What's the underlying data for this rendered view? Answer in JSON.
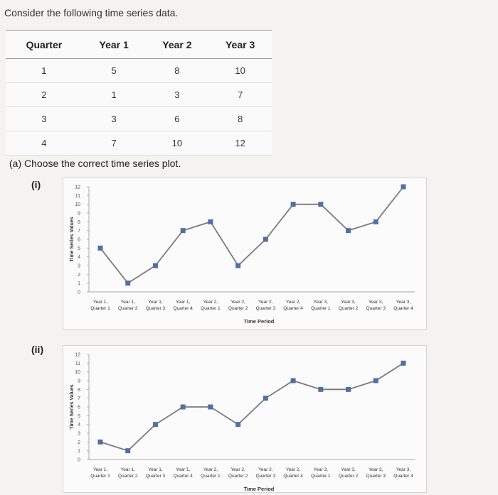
{
  "question": "Consider the following time series data.",
  "table": {
    "headers": [
      "Quarter",
      "Year 1",
      "Year 2",
      "Year 3"
    ],
    "rows": [
      [
        "1",
        "5",
        "8",
        "10"
      ],
      [
        "2",
        "1",
        "3",
        "7"
      ],
      [
        "3",
        "3",
        "6",
        "8"
      ],
      [
        "4",
        "7",
        "10",
        "12"
      ]
    ]
  },
  "part_a": "(a) Choose the correct time series plot.",
  "options": [
    "(i)",
    "(ii)"
  ],
  "chart_data": [
    {
      "type": "line",
      "xlabel": "Time Period",
      "ylabel": "Time Series Values",
      "ylim": [
        0,
        12
      ],
      "yticks": [
        0,
        1,
        2,
        3,
        4,
        5,
        6,
        7,
        8,
        9,
        10,
        11,
        12
      ],
      "categories": [
        [
          "Year 1,",
          "Quarter 1"
        ],
        [
          "Year 1,",
          "Quarter 2"
        ],
        [
          "Year 1,",
          "Quarter 3"
        ],
        [
          "Year 1,",
          "Quarter 4"
        ],
        [
          "Year 2,",
          "Quarter 1"
        ],
        [
          "Year 2,",
          "Quarter 2"
        ],
        [
          "Year 2,",
          "Quarter 3"
        ],
        [
          "Year 2,",
          "Quarter 4"
        ],
        [
          "Year 3,",
          "Quarter 1"
        ],
        [
          "Year 3,",
          "Quarter 2"
        ],
        [
          "Year 3,",
          "Quarter 3"
        ],
        [
          "Year 3,",
          "Quarter 4"
        ]
      ],
      "values": [
        5,
        1,
        3,
        7,
        8,
        3,
        6,
        10,
        10,
        7,
        8,
        12
      ],
      "line_color": "#7a7a7a",
      "marker_color": "#4f6fa6"
    },
    {
      "type": "line",
      "xlabel": "Time Period",
      "ylabel": "Time Series Values",
      "ylim": [
        0,
        12
      ],
      "yticks": [
        0,
        1,
        2,
        3,
        4,
        5,
        6,
        7,
        8,
        9,
        10,
        11,
        12
      ],
      "categories": [
        [
          "Year 1,",
          "Quarter 1"
        ],
        [
          "Year 1,",
          "Quarter 2"
        ],
        [
          "Year 1,",
          "Quarter 3"
        ],
        [
          "Year 1,",
          "Quarter 4"
        ],
        [
          "Year 2,",
          "Quarter 1"
        ],
        [
          "Year 2,",
          "Quarter 2"
        ],
        [
          "Year 2,",
          "Quarter 3"
        ],
        [
          "Year 2,",
          "Quarter 4"
        ],
        [
          "Year 3,",
          "Quarter 1"
        ],
        [
          "Year 3,",
          "Quarter 2"
        ],
        [
          "Year 3,",
          "Quarter 3"
        ],
        [
          "Year 3,",
          "Quarter 4"
        ]
      ],
      "values": [
        2,
        1,
        4,
        6,
        6,
        4,
        7,
        9,
        8,
        8,
        9,
        11
      ],
      "line_color": "#7a7a7a",
      "marker_color": "#4f6fa6"
    }
  ]
}
